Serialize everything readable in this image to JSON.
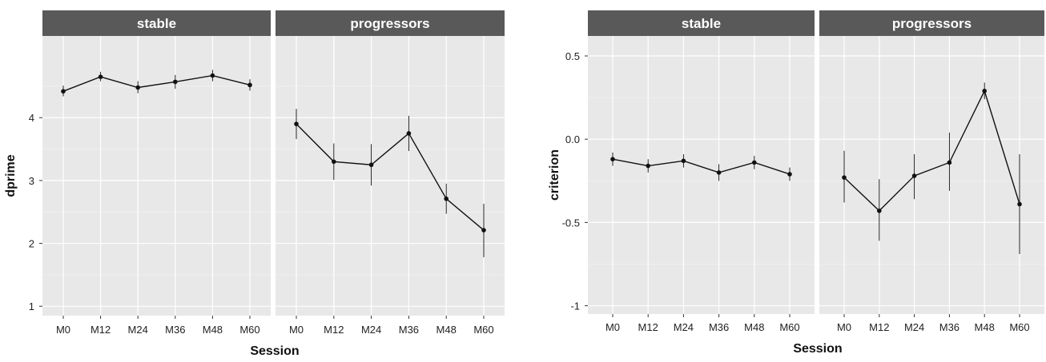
{
  "chart_data": [
    {
      "type": "line",
      "ylabel": "dprime",
      "xlabel": "Session",
      "ylim": [
        0.85,
        5.3
      ],
      "yticks": [
        1,
        2,
        3,
        4
      ],
      "categories": [
        "M0",
        "M12",
        "M24",
        "M36",
        "M48",
        "M60"
      ],
      "grid": true,
      "facets": [
        {
          "label": "stable",
          "values": [
            4.42,
            4.65,
            4.48,
            4.57,
            4.67,
            4.52
          ],
          "error": [
            [
              4.34,
              4.51
            ],
            [
              4.58,
              4.73
            ],
            [
              4.39,
              4.58
            ],
            [
              4.46,
              4.68
            ],
            [
              4.58,
              4.76
            ],
            [
              4.43,
              4.61
            ]
          ]
        },
        {
          "label": "progressors",
          "values": [
            3.9,
            3.3,
            3.25,
            3.75,
            2.71,
            2.21
          ],
          "error": [
            [
              3.66,
              4.14
            ],
            [
              3.01,
              3.59
            ],
            [
              2.92,
              3.58
            ],
            [
              3.47,
              4.03
            ],
            [
              2.47,
              2.95
            ],
            [
              1.78,
              2.63
            ]
          ]
        }
      ]
    },
    {
      "type": "line",
      "ylabel": "criterion",
      "xlabel": "Session",
      "ylim": [
        -1.05,
        0.62
      ],
      "yticks": [
        -1,
        -0.5,
        0.0,
        0.5
      ],
      "ytick_labels": [
        "-1",
        "-0.5",
        "0.0",
        "0.5"
      ],
      "categories": [
        "M0",
        "M12",
        "M24",
        "M36",
        "M48",
        "M60"
      ],
      "grid": true,
      "facets": [
        {
          "label": "stable",
          "values": [
            -0.12,
            -0.16,
            -0.13,
            -0.2,
            -0.14,
            -0.21
          ],
          "error": [
            [
              -0.16,
              -0.08
            ],
            [
              -0.2,
              -0.12
            ],
            [
              -0.17,
              -0.09
            ],
            [
              -0.25,
              -0.15
            ],
            [
              -0.18,
              -0.1
            ],
            [
              -0.25,
              -0.17
            ]
          ]
        },
        {
          "label": "progressors",
          "values": [
            -0.23,
            -0.43,
            -0.22,
            -0.14,
            0.29,
            -0.39
          ],
          "error": [
            [
              -0.38,
              -0.07
            ],
            [
              -0.61,
              -0.24
            ],
            [
              -0.36,
              -0.09
            ],
            [
              -0.31,
              0.04
            ],
            [
              0.24,
              0.34
            ],
            [
              -0.69,
              -0.09
            ]
          ]
        }
      ]
    }
  ]
}
